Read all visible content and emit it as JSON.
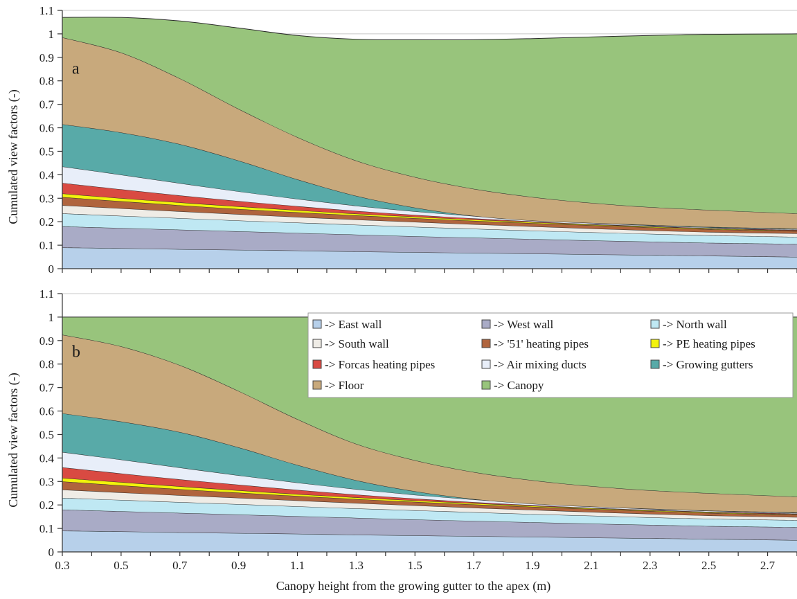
{
  "figure": {
    "xlabel": "Canopy height from the growing gutter to the apex (m)",
    "x_ticks": [
      "0.3",
      "0.5",
      "0.7",
      "0.9",
      "1.1",
      "1.3",
      "1.5",
      "1.7",
      "1.9",
      "2.1",
      "2.3",
      "2.5",
      "2.7"
    ],
    "y_ticks": [
      "0",
      "0.1",
      "0.2",
      "0.3",
      "0.4",
      "0.5",
      "0.6",
      "0.7",
      "0.8",
      "0.9",
      "1",
      "1.1"
    ]
  },
  "colors": {
    "east": "#b7d0ea",
    "west": "#a9abc6",
    "north": "#bfe8f3",
    "south": "#efece6",
    "p51": "#b0643d",
    "pe": "#f2f20c",
    "forcas": "#d94a42",
    "air": "#e8eef9",
    "gutters": "#58aaa8",
    "floor": "#c8a97c",
    "canopy": "#98c47c"
  },
  "legend": {
    "items": [
      {
        "label": "-> East wall",
        "key": "east"
      },
      {
        "label": "-> West wall",
        "key": "west"
      },
      {
        "label": "-> North wall",
        "key": "north"
      },
      {
        "label": "-> South wall",
        "key": "south"
      },
      {
        "label": "-> '51' heating pipes",
        "key": "p51"
      },
      {
        "label": "-> PE heating pipes",
        "key": "pe"
      },
      {
        "label": "-> Forcas heating pipes",
        "key": "forcas"
      },
      {
        "label": "-> Air mixing ducts",
        "key": "air"
      },
      {
        "label": "-> Growing gutters",
        "key": "gutters"
      },
      {
        "label": "-> Floor",
        "key": "floor"
      },
      {
        "label": "-> Canopy",
        "key": "canopy"
      }
    ]
  },
  "chart_data": [
    {
      "type": "area",
      "panel_label": "a",
      "ylabel": "Cumulated view factors (-)",
      "xlim": [
        0.3,
        2.8
      ],
      "ylim": [
        0,
        1.1
      ],
      "x": [
        0.3,
        0.5,
        0.7,
        0.9,
        1.1,
        1.3,
        1.5,
        1.7,
        1.9,
        2.1,
        2.3,
        2.5,
        2.8
      ],
      "cumulative_series": [
        {
          "key": "east",
          "values": [
            0.09,
            0.087,
            0.083,
            0.08,
            0.077,
            0.073,
            0.07,
            0.067,
            0.064,
            0.061,
            0.058,
            0.055,
            0.05
          ]
        },
        {
          "key": "west",
          "values": [
            0.18,
            0.173,
            0.166,
            0.159,
            0.152,
            0.145,
            0.138,
            0.132,
            0.126,
            0.12,
            0.115,
            0.11,
            0.105
          ]
        },
        {
          "key": "north",
          "values": [
            0.235,
            0.225,
            0.215,
            0.205,
            0.196,
            0.187,
            0.178,
            0.17,
            0.162,
            0.155,
            0.148,
            0.142,
            0.135
          ]
        },
        {
          "key": "south",
          "values": [
            0.27,
            0.257,
            0.244,
            0.232,
            0.22,
            0.209,
            0.199,
            0.189,
            0.18,
            0.171,
            0.163,
            0.156,
            0.15
          ]
        },
        {
          "key": "p51",
          "values": [
            0.305,
            0.287,
            0.27,
            0.254,
            0.24,
            0.227,
            0.215,
            0.204,
            0.194,
            0.185,
            0.176,
            0.168,
            0.16
          ]
        },
        {
          "key": "pe",
          "values": [
            0.32,
            0.3,
            0.282,
            0.265,
            0.249,
            0.234,
            0.221,
            0.209,
            0.198,
            0.188,
            0.179,
            0.171,
            0.162
          ]
        },
        {
          "key": "forcas",
          "values": [
            0.365,
            0.338,
            0.312,
            0.288,
            0.266,
            0.246,
            0.229,
            0.214,
            0.201,
            0.19,
            0.181,
            0.173,
            0.165
          ]
        },
        {
          "key": "air",
          "values": [
            0.435,
            0.4,
            0.364,
            0.329,
            0.297,
            0.268,
            0.244,
            0.224,
            0.208,
            0.195,
            0.184,
            0.176,
            0.168
          ]
        },
        {
          "key": "gutters",
          "values": [
            0.615,
            0.58,
            0.53,
            0.46,
            0.38,
            0.31,
            0.26,
            0.225,
            0.205,
            0.195,
            0.186,
            0.178,
            0.17
          ]
        },
        {
          "key": "floor",
          "values": [
            0.985,
            0.92,
            0.81,
            0.68,
            0.56,
            0.46,
            0.39,
            0.34,
            0.305,
            0.28,
            0.262,
            0.25,
            0.235
          ]
        },
        {
          "key": "canopy",
          "values": [
            1.07,
            1.07,
            1.055,
            1.025,
            0.993,
            0.977,
            0.975,
            0.975,
            0.98,
            0.987,
            0.993,
            0.998,
            1.0
          ]
        }
      ]
    },
    {
      "type": "area",
      "panel_label": "b",
      "ylabel": "Cumulated view factors (-)",
      "xlim": [
        0.3,
        2.8
      ],
      "ylim": [
        0,
        1.1
      ],
      "x": [
        0.3,
        0.5,
        0.7,
        0.9,
        1.1,
        1.3,
        1.5,
        1.7,
        1.9,
        2.1,
        2.3,
        2.5,
        2.8
      ],
      "cumulative_series": [
        {
          "key": "east",
          "values": [
            0.09,
            0.087,
            0.083,
            0.08,
            0.077,
            0.073,
            0.07,
            0.067,
            0.064,
            0.061,
            0.058,
            0.055,
            0.05
          ]
        },
        {
          "key": "west",
          "values": [
            0.18,
            0.173,
            0.166,
            0.159,
            0.152,
            0.145,
            0.138,
            0.132,
            0.126,
            0.12,
            0.115,
            0.11,
            0.105
          ]
        },
        {
          "key": "north",
          "values": [
            0.23,
            0.221,
            0.212,
            0.203,
            0.194,
            0.185,
            0.177,
            0.169,
            0.161,
            0.154,
            0.147,
            0.141,
            0.135
          ]
        },
        {
          "key": "south",
          "values": [
            0.265,
            0.253,
            0.241,
            0.23,
            0.219,
            0.208,
            0.198,
            0.188,
            0.179,
            0.17,
            0.162,
            0.155,
            0.148
          ]
        },
        {
          "key": "p51",
          "values": [
            0.3,
            0.283,
            0.267,
            0.252,
            0.238,
            0.225,
            0.213,
            0.202,
            0.192,
            0.183,
            0.174,
            0.166,
            0.158
          ]
        },
        {
          "key": "pe",
          "values": [
            0.315,
            0.297,
            0.279,
            0.262,
            0.246,
            0.232,
            0.219,
            0.207,
            0.196,
            0.186,
            0.177,
            0.169,
            0.16
          ]
        },
        {
          "key": "forcas",
          "values": [
            0.36,
            0.334,
            0.309,
            0.286,
            0.264,
            0.244,
            0.227,
            0.212,
            0.199,
            0.188,
            0.179,
            0.171,
            0.163
          ]
        },
        {
          "key": "air",
          "values": [
            0.425,
            0.393,
            0.359,
            0.326,
            0.295,
            0.267,
            0.243,
            0.223,
            0.207,
            0.194,
            0.183,
            0.175,
            0.166
          ]
        },
        {
          "key": "gutters",
          "values": [
            0.59,
            0.555,
            0.51,
            0.445,
            0.37,
            0.305,
            0.258,
            0.225,
            0.205,
            0.193,
            0.184,
            0.176,
            0.168
          ]
        },
        {
          "key": "floor",
          "values": [
            0.925,
            0.875,
            0.795,
            0.685,
            0.565,
            0.46,
            0.39,
            0.34,
            0.305,
            0.28,
            0.262,
            0.25,
            0.235
          ]
        },
        {
          "key": "canopy",
          "values": [
            1.0,
            1.0,
            1.0,
            1.0,
            1.0,
            1.0,
            1.0,
            1.0,
            1.0,
            1.0,
            1.0,
            1.0,
            1.0
          ]
        }
      ]
    }
  ]
}
